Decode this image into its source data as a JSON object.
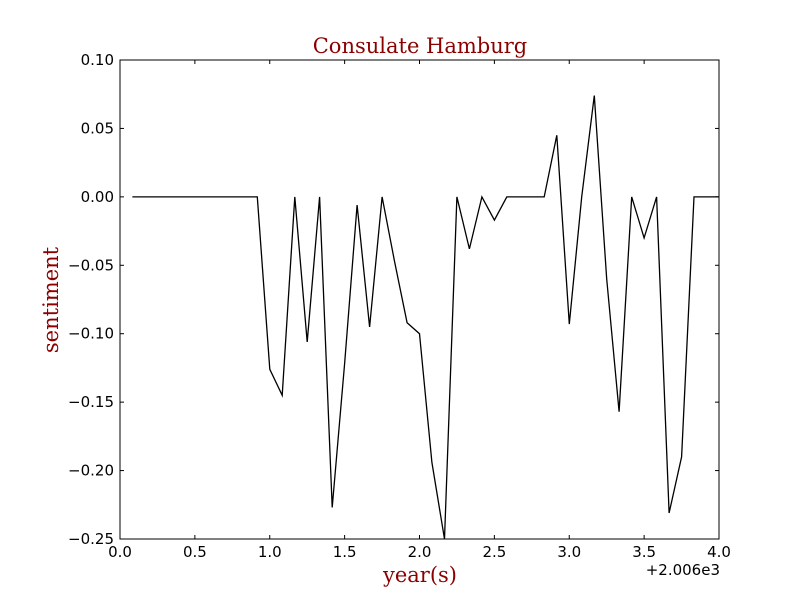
{
  "chart_data": {
    "type": "line",
    "title": "Consulate Hamburg",
    "xlabel": "year(s)",
    "ylabel": "sentiment",
    "x_offset_label": "+2.006e3",
    "xlim": [
      0.0,
      4.0
    ],
    "ylim": [
      -0.25,
      0.1
    ],
    "x_ticks": [
      "0.0",
      "0.5",
      "1.0",
      "1.5",
      "2.0",
      "2.5",
      "3.0",
      "3.5",
      "4.0"
    ],
    "y_ticks": [
      "0.10",
      "0.05",
      "0.00",
      "−0.05",
      "−0.10",
      "−0.15",
      "−0.20",
      "−0.25"
    ],
    "grid": false,
    "colors": {
      "title": "#8b0000",
      "axis_labels": "#8b0000",
      "line": "#000000"
    },
    "series": [
      {
        "x": [
          0.083,
          0.167,
          0.25,
          0.333,
          0.417,
          0.5,
          0.583,
          0.667,
          0.75,
          0.833,
          0.917,
          1.0,
          1.083,
          1.167,
          1.25,
          1.333,
          1.417,
          1.5,
          1.583,
          1.667,
          1.75,
          1.833,
          1.917,
          2.0,
          2.083,
          2.167,
          2.25,
          2.333,
          2.417,
          2.5,
          2.583,
          2.667,
          2.75,
          2.833,
          2.917,
          3.0,
          3.083,
          3.167,
          3.25,
          3.333,
          3.417,
          3.5,
          3.583,
          3.667,
          3.75,
          3.833,
          3.917,
          4.0
        ],
        "y": [
          0.0,
          0.0,
          0.0,
          0.0,
          0.0,
          0.0,
          0.0,
          0.0,
          0.0,
          0.0,
          0.0,
          -0.126,
          -0.145,
          0.0,
          -0.106,
          0.0,
          -0.227,
          -0.122,
          -0.006,
          -0.095,
          0.0,
          -0.047,
          -0.092,
          -0.1,
          -0.194,
          -0.25,
          0.0,
          -0.038,
          0.0,
          -0.017,
          0.0,
          0.0,
          0.0,
          0.0,
          0.045,
          -0.093,
          0.0,
          0.074,
          -0.06,
          -0.157,
          0.0,
          -0.03,
          0.0,
          -0.231,
          -0.19,
          0.0,
          0.0,
          0.0
        ]
      }
    ]
  }
}
